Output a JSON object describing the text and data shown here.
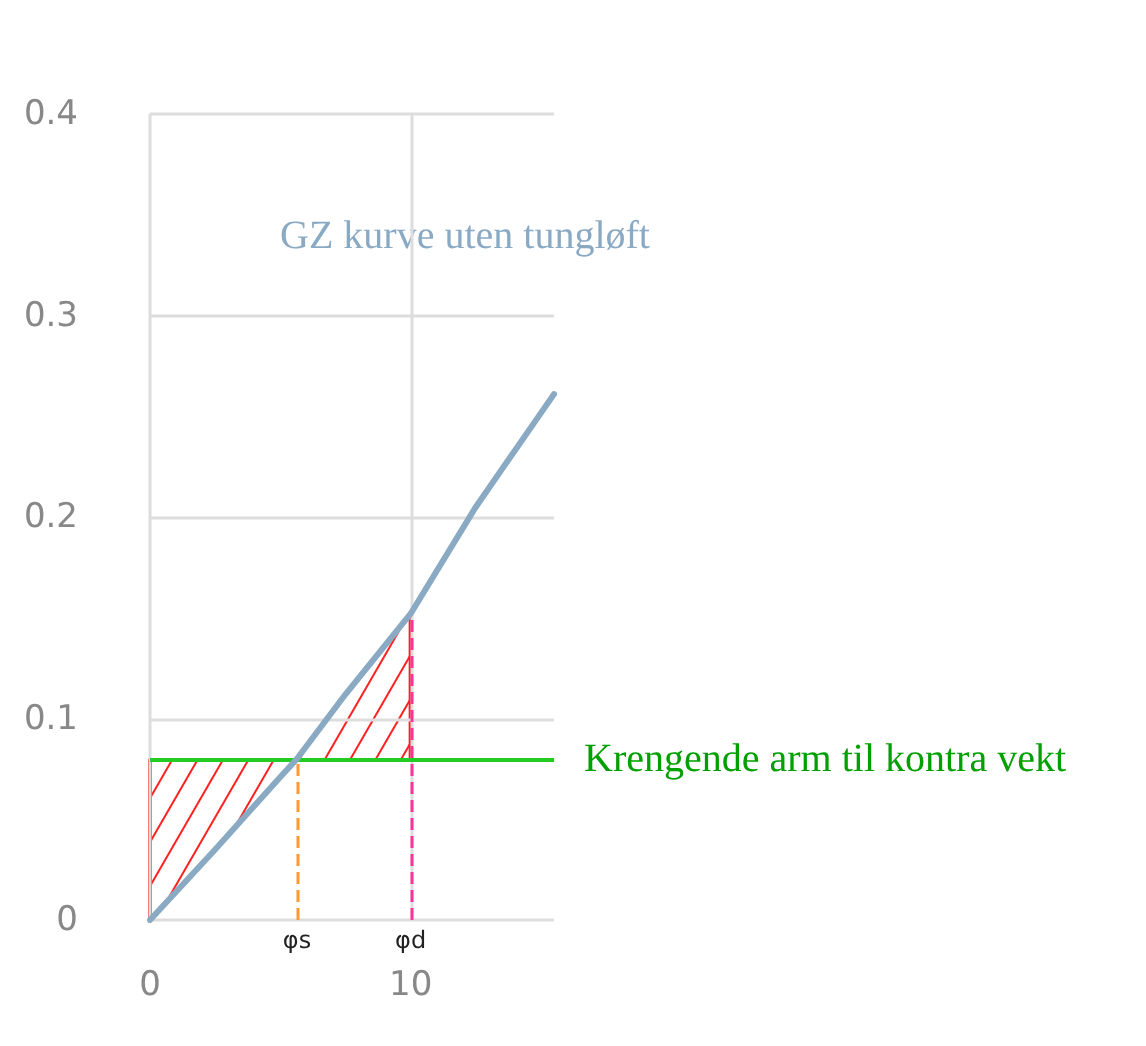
{
  "chart_data": {
    "type": "line",
    "x": [
      0,
      2.5,
      5,
      5.64,
      7.5,
      10,
      12.5,
      15.5
    ],
    "series": [
      {
        "name": "GZ kurve uten tungløft",
        "color": "#8aaac4",
        "values": [
          0,
          0.035,
          0.071,
          0.08,
          0.112,
          0.152,
          0.205,
          0.261
        ]
      }
    ],
    "xlim": [
      0,
      15.5
    ],
    "xticks": [
      0,
      10
    ],
    "ylim": [
      0,
      0.4
    ],
    "yticks": [
      0,
      0.1,
      0.2,
      0.3,
      0.4
    ],
    "grid": true,
    "legend": false,
    "marker": "none",
    "line_style": "solid",
    "ref_lines": [
      {
        "axis": "y",
        "value": 0.08,
        "label": "Krengende arm til kontra vekt",
        "color": "#22cc22",
        "line_style": "solid"
      },
      {
        "axis": "x",
        "value": 5.64,
        "label": "φs",
        "color": "#ff9933",
        "line_style": "dashed"
      },
      {
        "axis": "x",
        "value": 10,
        "label": "φd",
        "color": "#ff3399",
        "line_style": "dashed"
      }
    ]
  }
}
